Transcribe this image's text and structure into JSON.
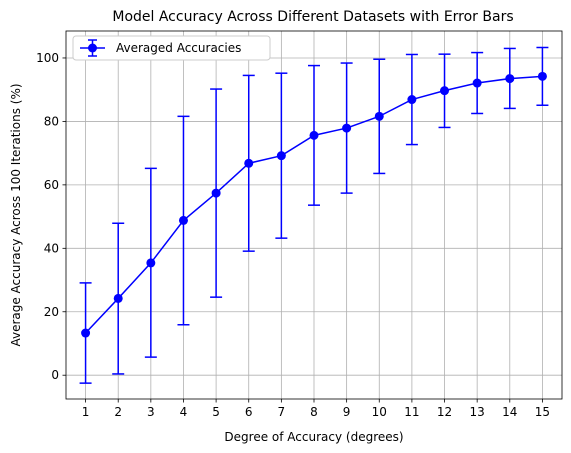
{
  "chart_data": {
    "type": "line",
    "title": "Model Accuracy Across Different Datasets with Error Bars",
    "xlabel": "Degree of Accuracy (degrees)",
    "ylabel": "Average Accuracy Across 100 Iterations (%)",
    "x": [
      1,
      2,
      3,
      4,
      5,
      6,
      7,
      8,
      9,
      10,
      11,
      12,
      13,
      14,
      15
    ],
    "x_tick_labels": [
      "1",
      "2",
      "3",
      "4",
      "5",
      "6",
      "7",
      "8",
      "9",
      "10",
      "11",
      "12",
      "13",
      "14",
      "15"
    ],
    "y_ticks": [
      0,
      20,
      40,
      60,
      80,
      100
    ],
    "y_tick_labels": [
      "0",
      "20",
      "40",
      "60",
      "80",
      "100"
    ],
    "xlim": [
      0.4,
      15.6
    ],
    "ylim": [
      -7.5,
      108.5
    ],
    "grid": true,
    "legend_position": "top-left",
    "series": [
      {
        "name": "Averaged Accuracies",
        "color": "#0000ff",
        "marker": "circle",
        "values": [
          13.3,
          24.2,
          35.4,
          48.8,
          57.4,
          66.8,
          69.2,
          75.6,
          77.9,
          81.6,
          86.9,
          89.7,
          92.1,
          93.5,
          94.2
        ],
        "error_low": [
          -2.5,
          0.4,
          5.7,
          15.9,
          24.6,
          39.1,
          43.2,
          53.6,
          57.4,
          63.6,
          72.7,
          78.1,
          82.5,
          84.1,
          85.1
        ],
        "error_high": [
          29.1,
          47.9,
          65.2,
          81.6,
          90.2,
          94.5,
          95.2,
          97.6,
          98.4,
          99.6,
          101.1,
          101.2,
          101.7,
          103.0,
          103.3
        ]
      }
    ]
  }
}
